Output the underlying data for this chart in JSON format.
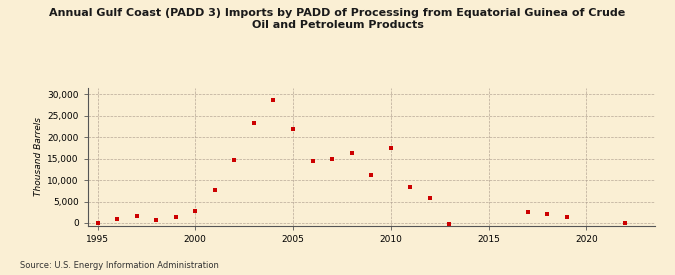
{
  "title": "Annual Gulf Coast (PADD 3) Imports by PADD of Processing from Equatorial Guinea of Crude\nOil and Petroleum Products",
  "ylabel": "Thousand Barrels",
  "source": "Source: U.S. Energy Information Administration",
  "background_color": "#faefd4",
  "marker_color": "#cc0000",
  "xlim": [
    1994.5,
    2023.5
  ],
  "ylim": [
    -600,
    31500
  ],
  "yticks": [
    0,
    5000,
    10000,
    15000,
    20000,
    25000,
    30000
  ],
  "xticks": [
    1995,
    2000,
    2005,
    2010,
    2015,
    2020
  ],
  "data": [
    [
      1995,
      -100
    ],
    [
      1996,
      900
    ],
    [
      1997,
      1600
    ],
    [
      1998,
      800
    ],
    [
      1999,
      1300
    ],
    [
      2000,
      2700
    ],
    [
      2001,
      7800
    ],
    [
      2002,
      14800
    ],
    [
      2003,
      23400
    ],
    [
      2004,
      28600
    ],
    [
      2005,
      22000
    ],
    [
      2006,
      14500
    ],
    [
      2007,
      15000
    ],
    [
      2008,
      16300
    ],
    [
      2009,
      11300
    ],
    [
      2010,
      17500
    ],
    [
      2011,
      8300
    ],
    [
      2012,
      5900
    ],
    [
      2013,
      -300
    ],
    [
      2017,
      2500
    ],
    [
      2018,
      2000
    ],
    [
      2019,
      1300
    ],
    [
      2022,
      -100
    ]
  ]
}
